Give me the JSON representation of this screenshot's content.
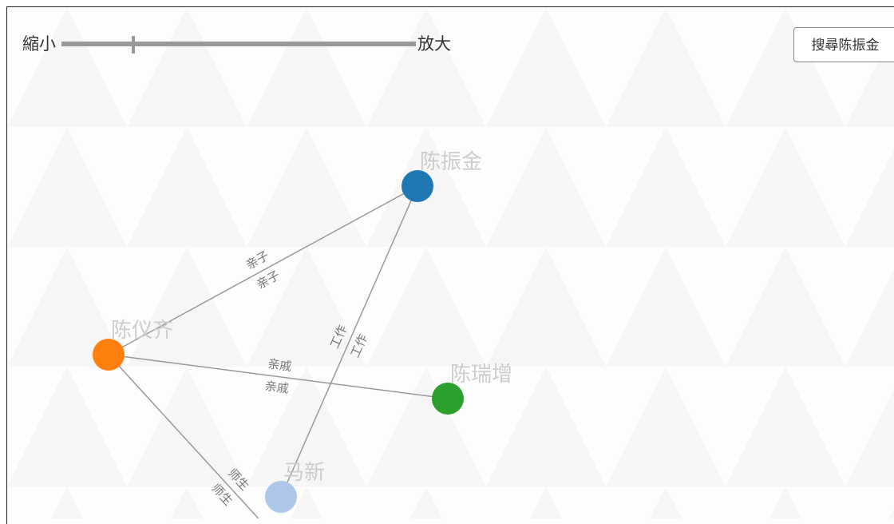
{
  "toolbar": {
    "zoom_out": "縮小",
    "zoom_in": "放大",
    "search_button": "搜尋陈振金"
  },
  "nodes": [
    {
      "label": "陈振金",
      "color": "#1f77b4"
    },
    {
      "label": "陈仪齐",
      "color": "#ff7f0e"
    },
    {
      "label": "陈瑞增",
      "color": "#2ca02c"
    },
    {
      "label": "马新",
      "color": "#aec7e8"
    }
  ],
  "edges": [
    {
      "labels": [
        "亲子",
        "亲子"
      ]
    },
    {
      "labels": [
        "工作",
        "工作"
      ]
    },
    {
      "labels": [
        "亲戚",
        "亲戚"
      ]
    },
    {
      "labels": [
        "师生",
        "师生"
      ]
    }
  ]
}
